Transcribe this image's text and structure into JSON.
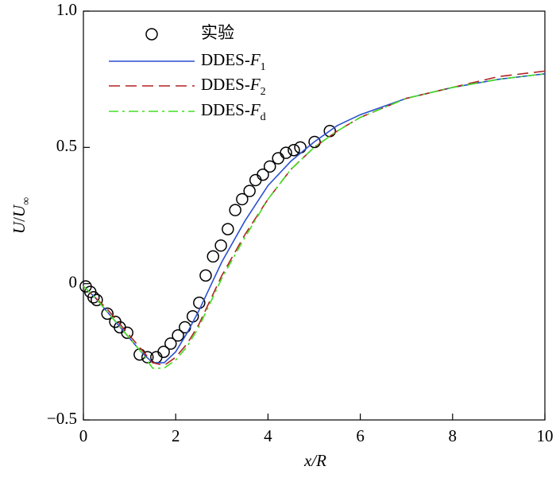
{
  "chart_data": {
    "type": "line",
    "xlabel": "x/R",
    "ylabel": "U/U∞",
    "xlim": [
      0,
      10
    ],
    "ylim": [
      -0.5,
      1.0
    ],
    "xticks": [
      0,
      2,
      4,
      6,
      8,
      10
    ],
    "yticks": [
      {
        "value": -0.5,
        "label": "−0.5"
      },
      0,
      0.5,
      {
        "value": 1.0,
        "label": "1.0"
      }
    ],
    "series": [
      {
        "name": "实验",
        "mode": "markers",
        "color": "#000000",
        "x": [
          0.05,
          0.15,
          0.22,
          0.29,
          0.52,
          0.69,
          0.79,
          0.95,
          1.22,
          1.39,
          1.58,
          1.74,
          1.89,
          2.05,
          2.2,
          2.37,
          2.51,
          2.65,
          2.81,
          2.98,
          3.13,
          3.29,
          3.44,
          3.6,
          3.73,
          3.89,
          4.04,
          4.22,
          4.39,
          4.56,
          4.7,
          5.01,
          5.34
        ],
        "values": [
          -0.01,
          -0.03,
          -0.05,
          -0.06,
          -0.11,
          -0.14,
          -0.16,
          -0.18,
          -0.26,
          -0.27,
          -0.27,
          -0.25,
          -0.22,
          -0.19,
          -0.16,
          -0.12,
          -0.07,
          0.03,
          0.1,
          0.14,
          0.2,
          0.27,
          0.31,
          0.34,
          0.38,
          0.4,
          0.43,
          0.46,
          0.48,
          0.49,
          0.5,
          0.52,
          0.56
        ]
      },
      {
        "name": "DDES-F1",
        "mode": "lines",
        "dash": "solid",
        "color": "#2b4fd0",
        "x": [
          0,
          0.25,
          0.5,
          0.75,
          1,
          1.25,
          1.5,
          1.75,
          2,
          2.25,
          2.5,
          2.75,
          3,
          3.5,
          4,
          4.5,
          5,
          5.5,
          6,
          7,
          8,
          9,
          10
        ],
        "values": [
          -0.01,
          -0.05,
          -0.1,
          -0.15,
          -0.2,
          -0.25,
          -0.29,
          -0.29,
          -0.25,
          -0.18,
          -0.1,
          -0.01,
          0.08,
          0.23,
          0.36,
          0.45,
          0.52,
          0.58,
          0.62,
          0.68,
          0.72,
          0.75,
          0.77
        ]
      },
      {
        "name": "DDES-F2",
        "mode": "lines",
        "dash": "dashed",
        "color": "#b22222",
        "x": [
          0,
          0.25,
          0.5,
          0.75,
          1,
          1.25,
          1.5,
          1.75,
          2,
          2.25,
          2.5,
          2.75,
          3,
          3.5,
          4,
          4.5,
          5,
          5.5,
          6,
          7,
          8,
          9,
          10
        ],
        "values": [
          -0.01,
          -0.05,
          -0.09,
          -0.14,
          -0.19,
          -0.24,
          -0.29,
          -0.3,
          -0.27,
          -0.22,
          -0.15,
          -0.06,
          0.03,
          0.18,
          0.31,
          0.42,
          0.5,
          0.56,
          0.61,
          0.68,
          0.72,
          0.76,
          0.78
        ]
      },
      {
        "name": "DDES-Fd",
        "mode": "lines",
        "dash": "dashdot",
        "color": "#44dd22",
        "x": [
          0,
          0.25,
          0.5,
          0.75,
          1,
          1.25,
          1.5,
          1.75,
          2,
          2.25,
          2.5,
          2.75,
          3,
          3.5,
          4,
          4.5,
          5,
          5.5,
          6,
          7,
          8,
          9,
          10
        ],
        "values": [
          -0.01,
          -0.05,
          -0.1,
          -0.15,
          -0.2,
          -0.25,
          -0.31,
          -0.31,
          -0.28,
          -0.23,
          -0.16,
          -0.07,
          0.02,
          0.17,
          0.31,
          0.42,
          0.5,
          0.56,
          0.61,
          0.68,
          0.72,
          0.75,
          0.77
        ]
      }
    ]
  }
}
